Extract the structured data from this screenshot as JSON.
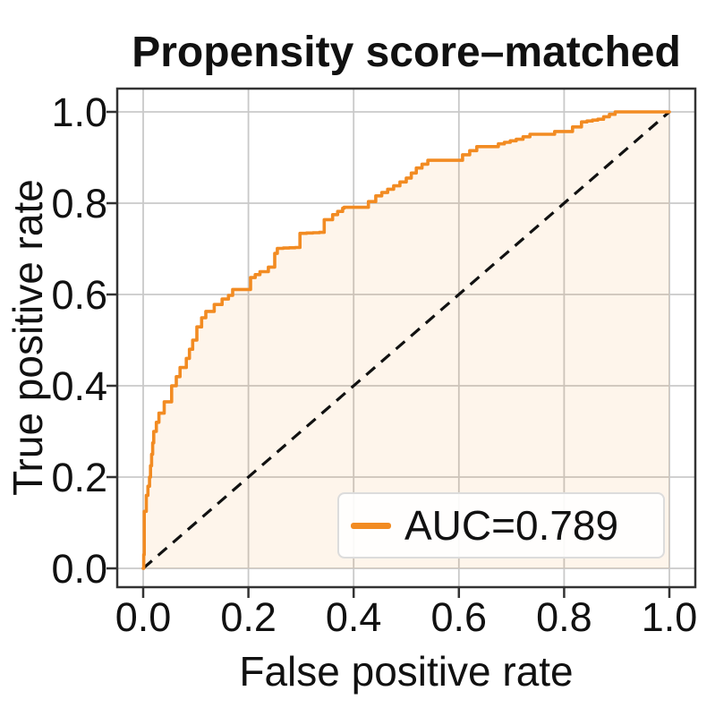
{
  "title": "Propensity score–matched",
  "colors": {
    "curve": "#f28b22",
    "fill": "rgba(242,139,34,0.09)",
    "diagonal": "#111111",
    "grid": "#c9c9c9",
    "spine": "#333333",
    "text": "#111111",
    "legend_border": "#dcdcdc"
  },
  "chart_data": {
    "type": "line",
    "subtype": "roc-step-curve",
    "title": "Propensity score–matched",
    "xlabel": "False positive rate",
    "ylabel": "True positive rate",
    "xlim": [
      -0.05,
      1.05
    ],
    "ylim": [
      -0.04,
      1.05
    ],
    "x_ticks": [
      0.0,
      0.2,
      0.4,
      0.6,
      0.8,
      1.0
    ],
    "y_ticks": [
      0.0,
      0.2,
      0.4,
      0.6,
      0.8,
      1.0
    ],
    "x_tick_labels": [
      "0.0",
      "0.2",
      "0.4",
      "0.6",
      "0.8",
      "1.0"
    ],
    "y_tick_labels": [
      "0.0",
      "0.2",
      "0.4",
      "0.6",
      "0.8",
      "1.0"
    ],
    "grid": true,
    "auc": 0.789,
    "legend": {
      "position": "lower right",
      "entries": [
        {
          "label": "AUC=0.789",
          "color": "#f28b22"
        }
      ]
    },
    "series": [
      {
        "name": "ROC curve",
        "style": "step",
        "color": "#f28b22",
        "fill_under": true,
        "fpr": [
          0.0,
          0.002,
          0.002,
          0.006,
          0.012,
          0.016,
          0.02,
          0.03,
          0.04,
          0.054,
          0.063,
          0.07,
          0.082,
          0.094,
          0.102,
          0.111,
          0.119,
          0.135,
          0.15,
          0.162,
          0.17,
          0.199,
          0.204,
          0.222,
          0.238,
          0.25,
          0.255,
          0.289,
          0.298,
          0.335,
          0.344,
          0.36,
          0.379,
          0.382,
          0.414,
          0.442,
          0.476,
          0.5,
          0.519,
          0.541,
          0.595,
          0.607,
          0.634,
          0.668,
          0.675,
          0.709,
          0.735,
          0.779,
          0.782,
          0.813,
          0.816,
          0.833,
          0.864,
          0.897,
          1.0
        ],
        "tpr": [
          0.0,
          0.06,
          0.125,
          0.16,
          0.2,
          0.25,
          0.3,
          0.34,
          0.365,
          0.4,
          0.42,
          0.44,
          0.46,
          0.5,
          0.529,
          0.549,
          0.563,
          0.578,
          0.59,
          0.598,
          0.611,
          0.611,
          0.637,
          0.65,
          0.66,
          0.69,
          0.701,
          0.703,
          0.734,
          0.736,
          0.764,
          0.775,
          0.789,
          0.791,
          0.791,
          0.816,
          0.838,
          0.855,
          0.877,
          0.894,
          0.894,
          0.906,
          0.924,
          0.924,
          0.93,
          0.94,
          0.951,
          0.951,
          0.957,
          0.957,
          0.967,
          0.978,
          0.984,
          1.0,
          1.0
        ]
      },
      {
        "name": "chance diagonal",
        "style": "dashed",
        "color": "#111111",
        "x": [
          0,
          1
        ],
        "y": [
          0,
          1
        ]
      }
    ]
  }
}
